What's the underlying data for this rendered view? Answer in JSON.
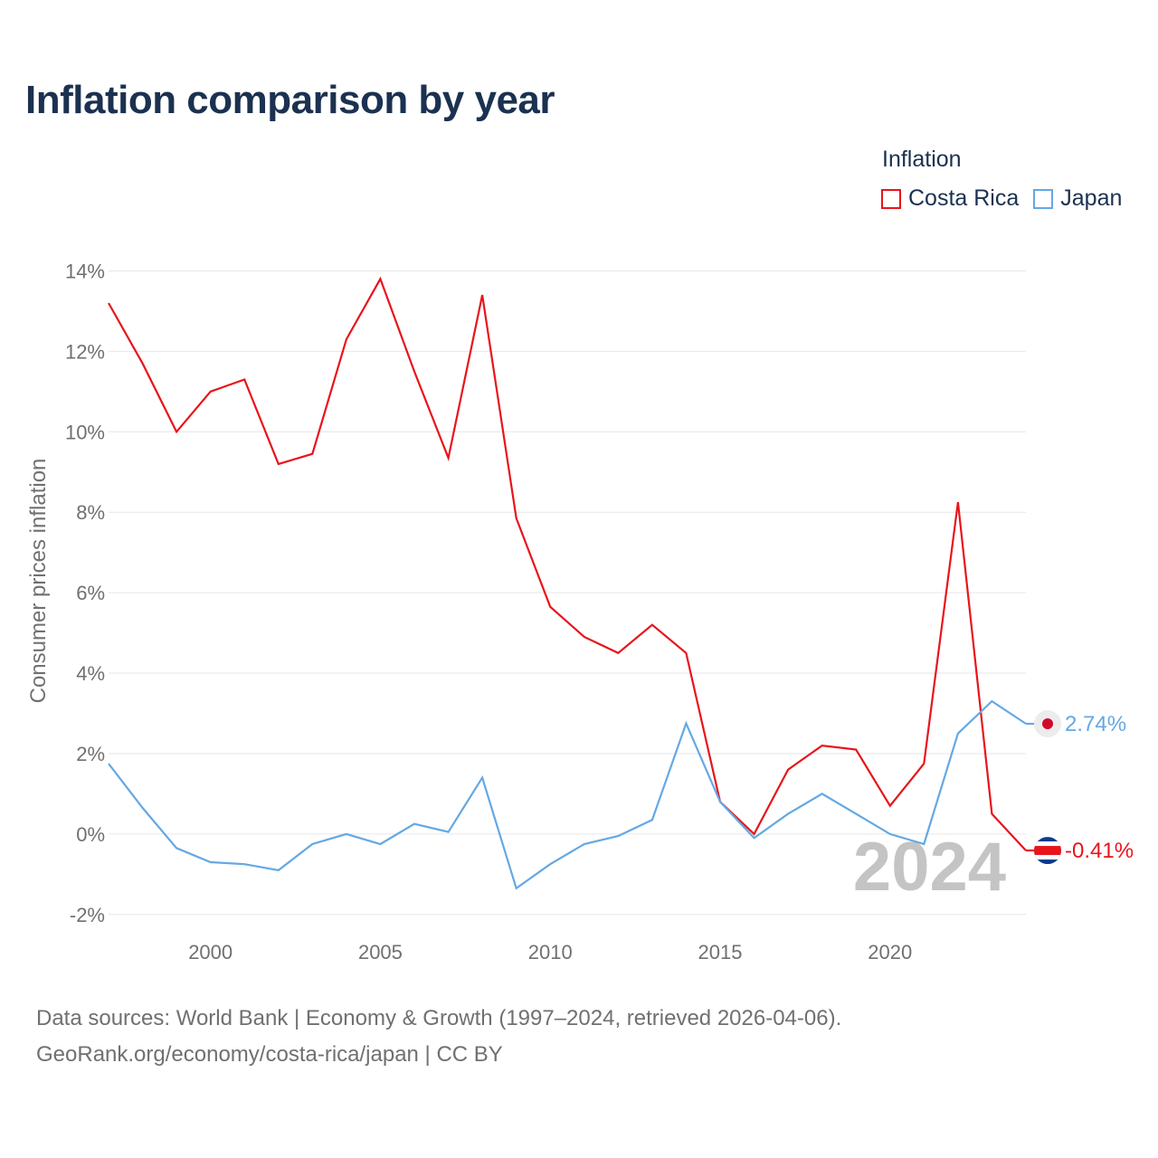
{
  "title": "Inflation comparison by year",
  "legend": {
    "title": "Inflation",
    "items": [
      {
        "label": "Costa Rica",
        "color": "#e8141b"
      },
      {
        "label": "Japan",
        "color": "#64a8e4"
      }
    ]
  },
  "chart_data": {
    "type": "line",
    "title": "Inflation comparison by year",
    "xlabel": "",
    "ylabel": "Consumer prices inflation",
    "x": [
      1997,
      1998,
      1999,
      2000,
      2001,
      2002,
      2003,
      2004,
      2005,
      2006,
      2007,
      2008,
      2009,
      2010,
      2011,
      2012,
      2013,
      2014,
      2015,
      2016,
      2017,
      2018,
      2019,
      2020,
      2021,
      2022,
      2023,
      2024
    ],
    "xlim": [
      1997,
      2024
    ],
    "ylim": [
      -2.5,
      15
    ],
    "x_ticks": [
      2000,
      2005,
      2010,
      2015,
      2020
    ],
    "x_tick_labels": [
      "2000",
      "2005",
      "2010",
      "2015",
      "2020"
    ],
    "y_ticks": [
      -2,
      0,
      2,
      4,
      6,
      8,
      10,
      12,
      14
    ],
    "y_tick_labels": [
      "-2%",
      "0%",
      "2%",
      "4%",
      "6%",
      "8%",
      "10%",
      "12%",
      "14%"
    ],
    "grid": true,
    "year_watermark": "2024",
    "series": [
      {
        "name": "Costa Rica",
        "color": "#e8141b",
        "end_label": "-0.41%",
        "flag": "costa-rica-flag",
        "values": [
          13.2,
          11.7,
          10.0,
          11.0,
          11.3,
          9.2,
          9.45,
          12.3,
          13.8,
          11.5,
          9.35,
          13.4,
          7.85,
          5.65,
          4.9,
          4.5,
          5.2,
          4.5,
          0.8,
          0.0,
          1.6,
          2.2,
          2.1,
          0.7,
          1.75,
          8.25,
          0.5,
          -0.41
        ]
      },
      {
        "name": "Japan",
        "color": "#64a8e4",
        "end_label": "2.74%",
        "flag": "japan-flag",
        "values": [
          1.75,
          0.65,
          -0.35,
          -0.7,
          -0.75,
          -0.9,
          -0.25,
          0.0,
          -0.25,
          0.25,
          0.05,
          1.4,
          -1.35,
          -0.75,
          -0.25,
          -0.05,
          0.35,
          2.75,
          0.8,
          -0.1,
          0.5,
          1.0,
          0.5,
          0.0,
          -0.25,
          2.5,
          3.3,
          2.74
        ]
      }
    ]
  },
  "source": {
    "line1": "Data sources: World Bank | Economy & Growth (1997–2024, retrieved 2026-04-06).",
    "line2": "GeoRank.org/economy/costa-rica/japan | CC BY"
  }
}
